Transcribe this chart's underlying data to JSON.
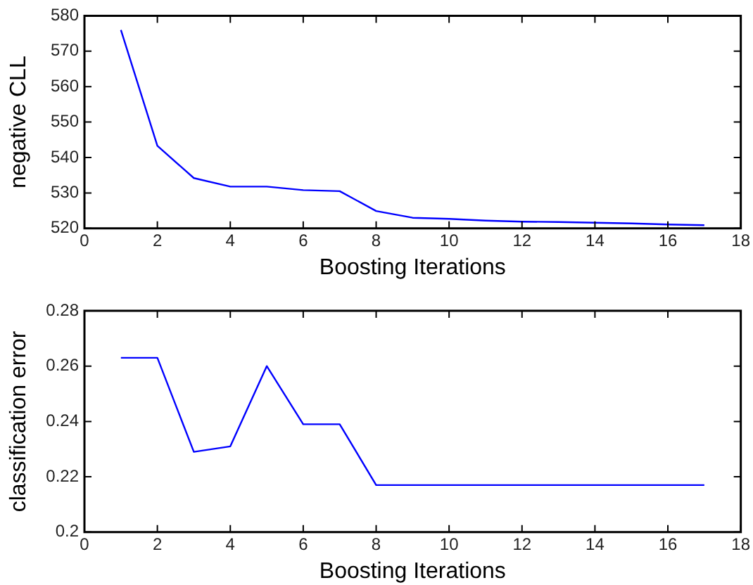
{
  "chart_data": [
    {
      "type": "line",
      "xlabel": "Boosting Iterations",
      "ylabel": "negative CLL",
      "x": [
        1,
        2,
        3,
        4,
        5,
        6,
        7,
        8,
        9,
        10,
        11,
        12,
        13,
        14,
        15,
        16,
        17
      ],
      "values": [
        576,
        543.3,
        534.2,
        531.8,
        531.8,
        530.8,
        530.5,
        524.9,
        523.0,
        522.7,
        522.2,
        521.9,
        521.8,
        521.6,
        521.4,
        521.1,
        520.9
      ],
      "color": "#0000ff",
      "xlim": [
        0,
        18
      ],
      "xticks": [
        0,
        2,
        4,
        6,
        8,
        10,
        12,
        14,
        16,
        18
      ],
      "ylim": [
        520,
        580
      ],
      "yticks": [
        520,
        530,
        540,
        550,
        560,
        570,
        580
      ],
      "grid": false,
      "marker": "none",
      "line_style": "solid"
    },
    {
      "type": "line",
      "xlabel": "Boosting Iterations",
      "ylabel": "classification error",
      "x": [
        1,
        2,
        3,
        4,
        5,
        6,
        7,
        8,
        9,
        10,
        11,
        12,
        13,
        14,
        15,
        16,
        17
      ],
      "values": [
        0.263,
        0.263,
        0.229,
        0.231,
        0.26,
        0.239,
        0.239,
        0.217,
        0.217,
        0.217,
        0.217,
        0.217,
        0.217,
        0.217,
        0.217,
        0.217,
        0.217
      ],
      "color": "#0000ff",
      "xlim": [
        0,
        18
      ],
      "xticks": [
        0,
        2,
        4,
        6,
        8,
        10,
        12,
        14,
        16,
        18
      ],
      "ylim": [
        0.2,
        0.28
      ],
      "yticks": [
        0.2,
        0.22,
        0.24,
        0.26,
        0.28
      ],
      "grid": false,
      "marker": "none",
      "line_style": "solid"
    }
  ]
}
